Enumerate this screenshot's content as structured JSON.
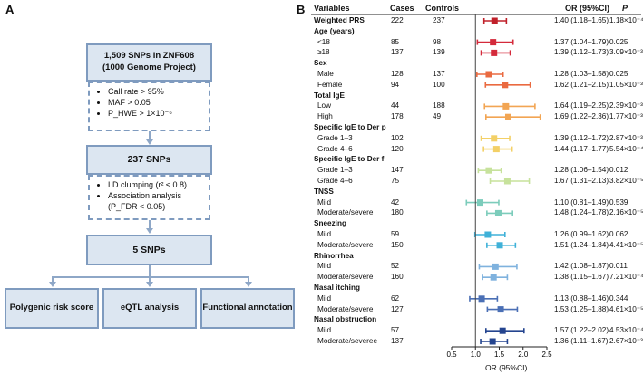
{
  "panel_a": {
    "label": "A",
    "box1": {
      "line1": "1,509 SNPs in ZNF608",
      "line2": "(1000 Genome Project)"
    },
    "filters1": [
      "Call rate > 95%",
      "MAF > 0.05",
      "P_HWE > 1×10⁻⁶"
    ],
    "box2": "237 SNPs",
    "filters2": [
      "LD clumping (r² ≤ 0.8)",
      "Association analysis (P_FDR < 0.05)"
    ],
    "box3": "5 SNPs",
    "outputs": [
      "Polygenic risk score",
      "eQTL analysis",
      "Functional annotation"
    ]
  },
  "panel_b": {
    "label": "B",
    "headers": {
      "variables": "Variables",
      "cases": "Cases",
      "controls": "Controls",
      "or": "OR (95%CI)",
      "p": "P"
    },
    "axis_label": "OR (95%CI)",
    "ticks": [
      "0.5",
      "1.0",
      "1.5",
      "2.0",
      "2.5"
    ]
  },
  "chart_data": {
    "type": "forest",
    "xlabel": "OR (95%CI)",
    "xlim": [
      0.5,
      2.5
    ],
    "reference_line": 1.0,
    "rows": [
      {
        "label": "Weighted PRS",
        "kind": "head",
        "cases": "222",
        "controls": "237",
        "or_text": "1.40 (1.18–1.65)",
        "p": "1.18×10⁻⁴",
        "or": 1.4,
        "lo": 1.18,
        "hi": 1.65,
        "color": "#c0202a"
      },
      {
        "label": "Age (years)",
        "kind": "section"
      },
      {
        "label": "<18",
        "kind": "row",
        "cases": "85",
        "controls": "98",
        "or_text": "1.37 (1.04–1.79)",
        "p": "0.025",
        "or": 1.37,
        "lo": 1.04,
        "hi": 1.79,
        "color": "#d42a3b"
      },
      {
        "label": "≥18",
        "kind": "row",
        "cases": "137",
        "controls": "139",
        "or_text": "1.39 (1.12–1.73)",
        "p": "3.09×10⁻³",
        "or": 1.39,
        "lo": 1.12,
        "hi": 1.73,
        "color": "#d42a3b"
      },
      {
        "label": "Sex",
        "kind": "section"
      },
      {
        "label": "Male",
        "kind": "row",
        "cases": "128",
        "controls": "137",
        "or_text": "1.28 (1.03–1.58)",
        "p": "0.025",
        "or": 1.28,
        "lo": 1.03,
        "hi": 1.58,
        "color": "#ea6a40"
      },
      {
        "label": "Female",
        "kind": "row",
        "cases": "94",
        "controls": "100",
        "or_text": "1.62 (1.21–2.15)",
        "p": "1.05×10⁻³",
        "or": 1.62,
        "lo": 1.21,
        "hi": 2.15,
        "color": "#ea6a40"
      },
      {
        "label": "Total IgE",
        "kind": "section"
      },
      {
        "label": "Low",
        "kind": "row",
        "cases": "44",
        "controls": "188",
        "or_text": "1.64 (1.19–2.25)",
        "p": "2.39×10⁻³",
        "or": 1.64,
        "lo": 1.19,
        "hi": 2.25,
        "color": "#f2a553"
      },
      {
        "label": "High",
        "kind": "row",
        "cases": "178",
        "controls": "49",
        "or_text": "1.69 (1.22–2.36)",
        "p": "1.77×10⁻³",
        "or": 1.69,
        "lo": 1.22,
        "hi": 2.36,
        "color": "#f2a553"
      },
      {
        "label": "Specific IgE to Der p",
        "kind": "section"
      },
      {
        "label": "Grade 1–3",
        "kind": "row",
        "cases": "102",
        "controls": "",
        "or_text": "1.39 (1.12–1.72)",
        "p": "2.87×10⁻³",
        "or": 1.39,
        "lo": 1.12,
        "hi": 1.72,
        "color": "#f3d066"
      },
      {
        "label": "Grade 4–6",
        "kind": "row",
        "cases": "120",
        "controls": "",
        "or_text": "1.44 (1.17–1.77)",
        "p": "5.54×10⁻⁴",
        "or": 1.44,
        "lo": 1.17,
        "hi": 1.77,
        "color": "#f3d066"
      },
      {
        "label": "Specific IgE to Der f",
        "kind": "section"
      },
      {
        "label": "Grade 1–3",
        "kind": "row",
        "cases": "147",
        "controls": "",
        "or_text": "1.28 (1.06–1.54)",
        "p": "0.012",
        "or": 1.28,
        "lo": 1.06,
        "hi": 1.54,
        "color": "#c7e29c"
      },
      {
        "label": "Grade 4–6",
        "kind": "row",
        "cases": "75",
        "controls": "",
        "or_text": "1.67 (1.31–2.13)",
        "p": "3.82×10⁻⁵",
        "or": 1.67,
        "lo": 1.31,
        "hi": 2.13,
        "color": "#c7e29c"
      },
      {
        "label": "TNSS",
        "kind": "section"
      },
      {
        "label": "Mild",
        "kind": "row",
        "cases": "42",
        "controls": "",
        "or_text": "1.10 (0.81–1.49)",
        "p": "0.539",
        "or": 1.1,
        "lo": 0.81,
        "hi": 1.49,
        "color": "#7cccbb"
      },
      {
        "label": "Moderate/severe",
        "kind": "row",
        "cases": "180",
        "controls": "",
        "or_text": "1.48 (1.24–1.78)",
        "p": "2.16×10⁻⁵",
        "or": 1.48,
        "lo": 1.24,
        "hi": 1.78,
        "color": "#7cccbb"
      },
      {
        "label": "Sneezing",
        "kind": "section"
      },
      {
        "label": "Mild",
        "kind": "row",
        "cases": "59",
        "controls": "",
        "or_text": "1.26 (0.99–1.62)",
        "p": "0.062",
        "or": 1.26,
        "lo": 0.99,
        "hi": 1.62,
        "color": "#3fb1d8"
      },
      {
        "label": "Moderate/severe",
        "kind": "row",
        "cases": "150",
        "controls": "",
        "or_text": "1.51 (1.24–1.84)",
        "p": "4.41×10⁻⁵",
        "or": 1.51,
        "lo": 1.24,
        "hi": 1.84,
        "color": "#3fb1d8"
      },
      {
        "label": "Rhinorrhea",
        "kind": "section"
      },
      {
        "label": "Mild",
        "kind": "row",
        "cases": "52",
        "controls": "",
        "or_text": "1.42 (1.08–1.87)",
        "p": "0.011",
        "or": 1.42,
        "lo": 1.08,
        "hi": 1.87,
        "color": "#7fb2de"
      },
      {
        "label": "Moderate/severe",
        "kind": "row",
        "cases": "160",
        "controls": "",
        "or_text": "1.38 (1.15–1.67)",
        "p": "7.21×10⁻⁴",
        "or": 1.38,
        "lo": 1.15,
        "hi": 1.67,
        "color": "#7fb2de"
      },
      {
        "label": "Nasal itching",
        "kind": "section"
      },
      {
        "label": "Mild",
        "kind": "row",
        "cases": "62",
        "controls": "",
        "or_text": "1.13 (0.88–1.46)",
        "p": "0.344",
        "or": 1.13,
        "lo": 0.88,
        "hi": 1.46,
        "color": "#4a6fb5"
      },
      {
        "label": "Moderate/severe",
        "kind": "row",
        "cases": "127",
        "controls": "",
        "or_text": "1.53 (1.25–1.88)",
        "p": "4.61×10⁻⁵",
        "or": 1.53,
        "lo": 1.25,
        "hi": 1.88,
        "color": "#4a6fb5"
      },
      {
        "label": "Nasal obstruction",
        "kind": "section"
      },
      {
        "label": "Mild",
        "kind": "row",
        "cases": "57",
        "controls": "",
        "or_text": "1.57 (1.22–2.02)",
        "p": "4.53×10⁻⁴",
        "or": 1.57,
        "lo": 1.22,
        "hi": 2.02,
        "color": "#24448f"
      },
      {
        "label": "Moderate/severee",
        "kind": "row",
        "cases": "137",
        "controls": "",
        "or_text": "1.36 (1.11–1.67)",
        "p": "2.67×10⁻³",
        "or": 1.36,
        "lo": 1.11,
        "hi": 1.67,
        "color": "#24448f"
      }
    ]
  }
}
